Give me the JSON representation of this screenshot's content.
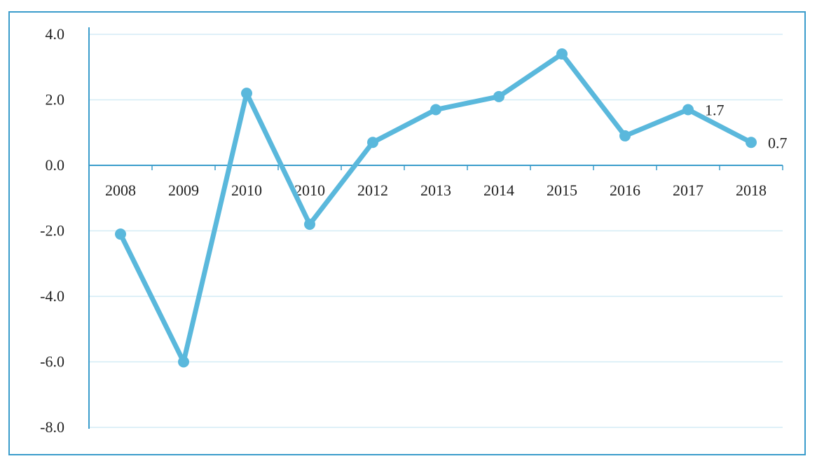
{
  "chart_data": {
    "type": "line",
    "title": "",
    "xlabel": "",
    "ylabel": "",
    "categories": [
      "2008",
      "2009",
      "2010",
      "2010",
      "2012",
      "2013",
      "2014",
      "2015",
      "2016",
      "2017",
      "2018"
    ],
    "series": [
      {
        "values": [
          -2.1,
          -6.0,
          2.2,
          -1.8,
          0.7,
          1.7,
          2.1,
          3.4,
          0.9,
          1.7,
          0.7
        ]
      }
    ],
    "data_labels": [
      {
        "category_index": 9,
        "text": "1.7"
      },
      {
        "category_index": 10,
        "text": "0.7"
      }
    ],
    "y_ticks": [
      "4.0",
      "2.0",
      "0.0",
      "-2.0",
      "-4.0",
      "-6.0",
      "-8.0"
    ],
    "y_tick_values": [
      4,
      2,
      0,
      -2,
      -4,
      -6,
      -8
    ],
    "ylim": [
      -8,
      4
    ],
    "grid": true,
    "legend": "none",
    "colors": {
      "line": "#5ab8dc",
      "marker": "#5ab8dc",
      "axis": "#3a9ccb",
      "grid": "#d4ecf6",
      "frame": "#3a9ccb"
    }
  }
}
